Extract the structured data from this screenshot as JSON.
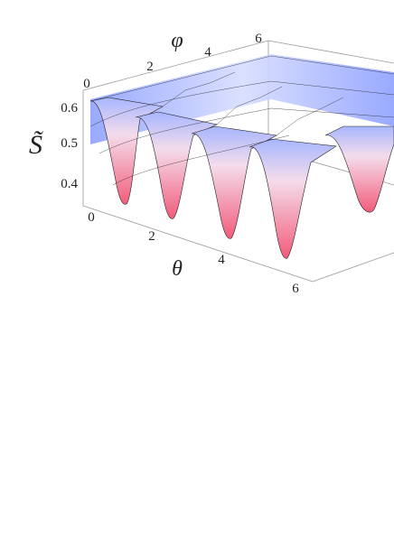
{
  "chart_data": {
    "type": "surface3d",
    "xlabel": "θ",
    "ylabel": "φ",
    "zlabel": "S̃",
    "x_ticks": [
      "0",
      "2",
      "4",
      "6"
    ],
    "y_ticks": [
      "0",
      "2",
      "4",
      "6"
    ],
    "z_ticks": [
      "0.4",
      "0.5",
      "0.6"
    ],
    "xlim": [
      0,
      6.28
    ],
    "ylim": [
      0,
      6.28
    ],
    "zlim": [
      0.33,
      0.63
    ],
    "surface": {
      "x_min_locations": [
        0.79,
        2.36,
        3.93,
        5.5
      ],
      "z_max": 0.62,
      "z_min": 0.34,
      "periodicity_theta": 1.57
    },
    "colors": {
      "high": "#8ea0ff",
      "mid": "#f5d8ea",
      "low": "#f25c7a",
      "edge": "#222222"
    }
  }
}
